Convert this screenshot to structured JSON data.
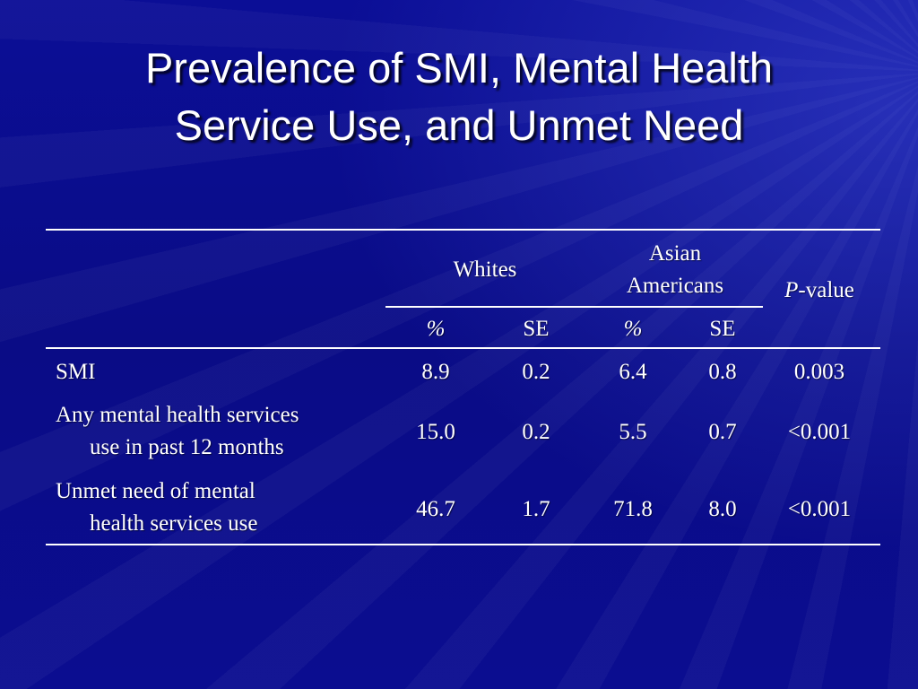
{
  "slide": {
    "title_line1": "Prevalence of SMI, Mental Health",
    "title_line2": "Service Use, and Unmet Need"
  },
  "table": {
    "group_whites": "Whites",
    "group_asian_line1": "Asian",
    "group_asian_line2": "Americans",
    "pvalue_p": "P",
    "pvalue_rest": "-value",
    "subheaders": [
      "%",
      "SE",
      "%",
      "SE"
    ],
    "rows": [
      {
        "label_line1": "SMI",
        "label_line2": "",
        "whites_pct": "8.9",
        "whites_se": "0.2",
        "asian_pct": "6.4",
        "asian_se": "0.8",
        "p_value": "0.003"
      },
      {
        "label_line1": "Any mental health services",
        "label_line2": "use in past 12 months",
        "whites_pct": "15.0",
        "whites_se": "0.2",
        "asian_pct": "5.5",
        "asian_se": "0.7",
        "p_value": "<0.001"
      },
      {
        "label_line1": "Unmet need of mental",
        "label_line2": "health services use",
        "whites_pct": "46.7",
        "whites_se": "1.7",
        "asian_pct": "71.8",
        "asian_se": "8.0",
        "p_value": "<0.001"
      }
    ]
  },
  "colors": {
    "background": "#0a0c8a",
    "text": "#ffffff"
  }
}
